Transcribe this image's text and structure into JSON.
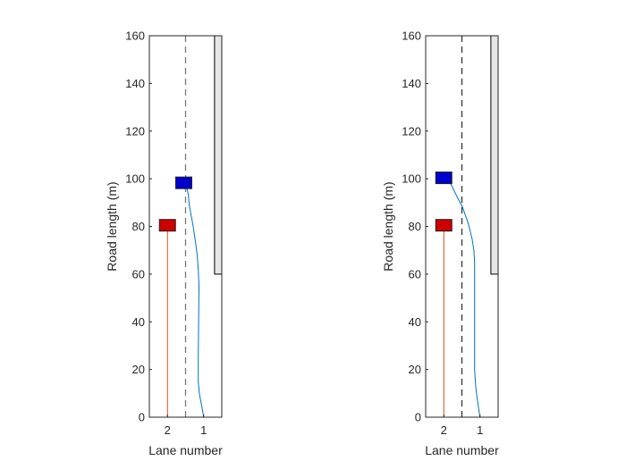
{
  "chart_data": [
    {
      "type": "line",
      "xlabel": "Lane number",
      "ylabel": "Road length (m)",
      "ylim": [
        0,
        160
      ],
      "yticks": [
        0,
        20,
        40,
        60,
        80,
        100,
        120,
        140,
        160
      ],
      "xlim": [
        0.5,
        2.5
      ],
      "xdirection": "reversed",
      "xticks": [
        {
          "value": 2,
          "label": "2"
        },
        {
          "value": 1,
          "label": "1"
        }
      ],
      "lane_divider": {
        "x": 1.5,
        "style": "dashed",
        "color": "#777777"
      },
      "obstacle": {
        "x_from": 0.5,
        "x_to": 0.7,
        "y_from": 60,
        "y_to": 160,
        "color": "#e6e6e6"
      },
      "series": [
        {
          "color": "#0072BD",
          "points": [
            [
              1.0,
              0
            ],
            [
              1.02,
              2
            ],
            [
              1.07,
              6
            ],
            [
              1.12,
              10
            ],
            [
              1.15,
              15
            ],
            [
              1.15,
              25
            ],
            [
              1.14,
              40
            ],
            [
              1.13,
              55
            ],
            [
              1.15,
              62
            ],
            [
              1.18,
              68
            ],
            [
              1.22,
              73
            ],
            [
              1.26,
              77
            ],
            [
              1.3,
              81
            ],
            [
              1.35,
              85
            ],
            [
              1.4,
              89
            ],
            [
              1.42,
              93
            ],
            [
              1.46,
              96
            ],
            [
              1.5,
              98
            ]
          ]
        },
        {
          "color": "#D95319",
          "points": [
            [
              2.0,
              0
            ],
            [
              2.0,
              80
            ]
          ]
        }
      ],
      "vehicles": [
        {
          "x": 2.0,
          "y": 80.5,
          "color": "#cc0000"
        },
        {
          "x": 1.55,
          "y": 98.3,
          "color": "#0000cc"
        }
      ]
    },
    {
      "type": "line",
      "xlabel": "Lane number",
      "ylabel": "Road length (m)",
      "ylim": [
        0,
        160
      ],
      "yticks": [
        0,
        20,
        40,
        60,
        80,
        100,
        120,
        140,
        160
      ],
      "xlim": [
        0.5,
        2.5
      ],
      "xdirection": "reversed",
      "xticks": [
        {
          "value": 2,
          "label": "2"
        },
        {
          "value": 1,
          "label": "1"
        }
      ],
      "lane_divider": {
        "x": 1.5,
        "style": "dashed",
        "color": "#333333"
      },
      "obstacle": {
        "x_from": 0.5,
        "x_to": 0.7,
        "y_from": 60,
        "y_to": 160,
        "color": "#e6e6e6"
      },
      "series": [
        {
          "color": "#0072BD",
          "points": [
            [
              1.0,
              0
            ],
            [
              1.03,
              3
            ],
            [
              1.08,
              8
            ],
            [
              1.12,
              13
            ],
            [
              1.15,
              20
            ],
            [
              1.15,
              35
            ],
            [
              1.15,
              55
            ],
            [
              1.15,
              65
            ],
            [
              1.17,
              70
            ],
            [
              1.22,
              75
            ],
            [
              1.32,
              81
            ],
            [
              1.48,
              88
            ],
            [
              1.65,
              93
            ],
            [
              1.78,
              97
            ],
            [
              1.88,
              100
            ]
          ]
        },
        {
          "color": "#D95319",
          "points": [
            [
              2.0,
              0
            ],
            [
              2.0,
              80
            ]
          ]
        }
      ],
      "vehicles": [
        {
          "x": 2.0,
          "y": 80.5,
          "color": "#cc0000"
        },
        {
          "x": 2.0,
          "y": 100.4,
          "color": "#0000cc"
        }
      ]
    }
  ]
}
